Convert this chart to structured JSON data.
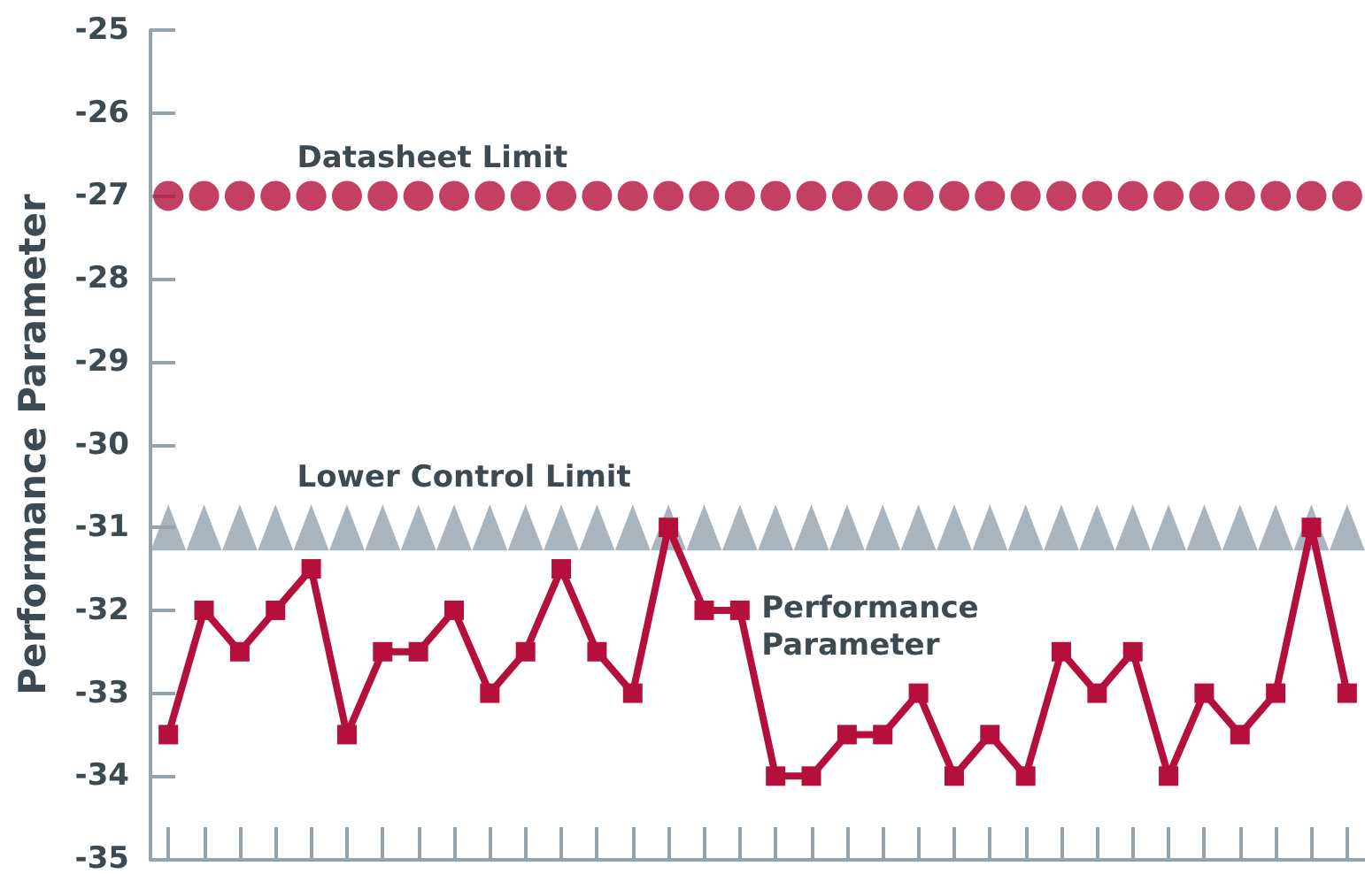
{
  "chart_data": {
    "type": "line",
    "ylabel": "Performance Parameter",
    "categories": [
      null,
      null,
      null,
      null,
      null,
      null,
      null,
      null,
      null,
      null,
      null,
      null,
      null,
      null,
      null,
      null,
      null,
      null,
      null,
      null,
      null,
      null,
      null,
      null,
      null,
      null,
      null,
      null,
      null,
      null,
      null,
      null,
      null,
      null
    ],
    "series": [
      {
        "name": "Datasheet Limit",
        "type": "scatter",
        "marker": "circle",
        "color": "#b5103c",
        "values": [
          -27,
          -27,
          -27,
          -27,
          -27,
          -27,
          -27,
          -27,
          -27,
          -27,
          -27,
          -27,
          -27,
          -27,
          -27,
          -27,
          -27,
          -27,
          -27,
          -27,
          -27,
          -27,
          -27,
          -27,
          -27,
          -27,
          -27,
          -27,
          -27,
          -27,
          -27,
          -27,
          -27,
          -27
        ]
      },
      {
        "name": "Lower Control Limit",
        "type": "scatter",
        "marker": "triangle",
        "color": "#94a3ae",
        "values": [
          -31,
          -31,
          -31,
          -31,
          -31,
          -31,
          -31,
          -31,
          -31,
          -31,
          -31,
          -31,
          -31,
          -31,
          -31,
          -31,
          -31,
          -31,
          -31,
          -31,
          -31,
          -31,
          -31,
          -31,
          -31,
          -31,
          -31,
          -31,
          -31,
          -31,
          -31,
          -31,
          -31,
          -31
        ]
      },
      {
        "name": "Performance Parameter",
        "type": "line",
        "marker": "square",
        "color": "#b5103c",
        "values": [
          -33.5,
          -32,
          -32.5,
          -32,
          -31.5,
          -33.5,
          -32.5,
          -32.5,
          -32,
          -33,
          -32.5,
          -31.5,
          -32.5,
          -33,
          -31,
          -32,
          -32,
          -34,
          -34,
          -33.5,
          -33.5,
          -33,
          -34,
          -33.5,
          -34,
          -32.5,
          -33,
          -32.5,
          -34,
          -33,
          -33.5,
          -33,
          -31,
          -33
        ]
      }
    ],
    "ylim": [
      -35,
      -25
    ],
    "yticks": [
      -35,
      -34,
      -33,
      -32,
      -31,
      -30,
      -29,
      -28,
      -27,
      -26,
      -25
    ],
    "grid": false,
    "legend": false,
    "tick_labels": "y"
  }
}
